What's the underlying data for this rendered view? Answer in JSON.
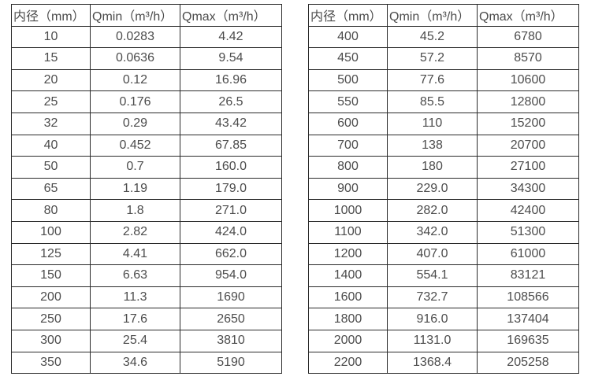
{
  "style": {
    "text_color": "#4c4c4c",
    "border_color": "#2b2b2b",
    "background_color": "#ffffff"
  },
  "tables": [
    {
      "name": "flow-range-table-small-diameters",
      "headers": [
        "内径（mm）",
        "Qmin（m³/h）",
        "Qmax（m³/h）"
      ],
      "rows": [
        [
          "10",
          "0.0283",
          "4.42"
        ],
        [
          "15",
          "0.0636",
          "9.54"
        ],
        [
          "20",
          "0.12",
          "16.96"
        ],
        [
          "25",
          "0.176",
          "26.5"
        ],
        [
          "32",
          "0.29",
          "43.42"
        ],
        [
          "40",
          "0.452",
          "67.85"
        ],
        [
          "50",
          "0.7",
          "160.0"
        ],
        [
          "65",
          "1.19",
          "179.0"
        ],
        [
          "80",
          "1.8",
          "271.0"
        ],
        [
          "100",
          "2.82",
          "424.0"
        ],
        [
          "125",
          "4.41",
          "662.0"
        ],
        [
          "150",
          "6.63",
          "954.0"
        ],
        [
          "200",
          "11.3",
          "1690"
        ],
        [
          "250",
          "17.6",
          "2650"
        ],
        [
          "300",
          "25.4",
          "3810"
        ],
        [
          "350",
          "34.6",
          "5190"
        ]
      ]
    },
    {
      "name": "flow-range-table-large-diameters",
      "headers": [
        "内径（mm）",
        "Qmin（m³/h）",
        "Qmax（m³/h）"
      ],
      "rows": [
        [
          "400",
          "45.2",
          "6780"
        ],
        [
          "450",
          "57.2",
          "8570"
        ],
        [
          "500",
          "77.6",
          "10600"
        ],
        [
          "550",
          "85.5",
          "12800"
        ],
        [
          "600",
          "110",
          "15200"
        ],
        [
          "700",
          "138",
          "20700"
        ],
        [
          "800",
          "180",
          "27100"
        ],
        [
          "900",
          "229.0",
          "34300"
        ],
        [
          "1000",
          "282.0",
          "42400"
        ],
        [
          "1100",
          "342.0",
          "51300"
        ],
        [
          "1200",
          "407.0",
          "61000"
        ],
        [
          "1400",
          "554.1",
          "83121"
        ],
        [
          "1600",
          "732.7",
          "108566"
        ],
        [
          "1800",
          "916.0",
          "137404"
        ],
        [
          "2000",
          "1131.0",
          "169635"
        ],
        [
          "2200",
          "1368.4",
          "205258"
        ]
      ]
    }
  ]
}
